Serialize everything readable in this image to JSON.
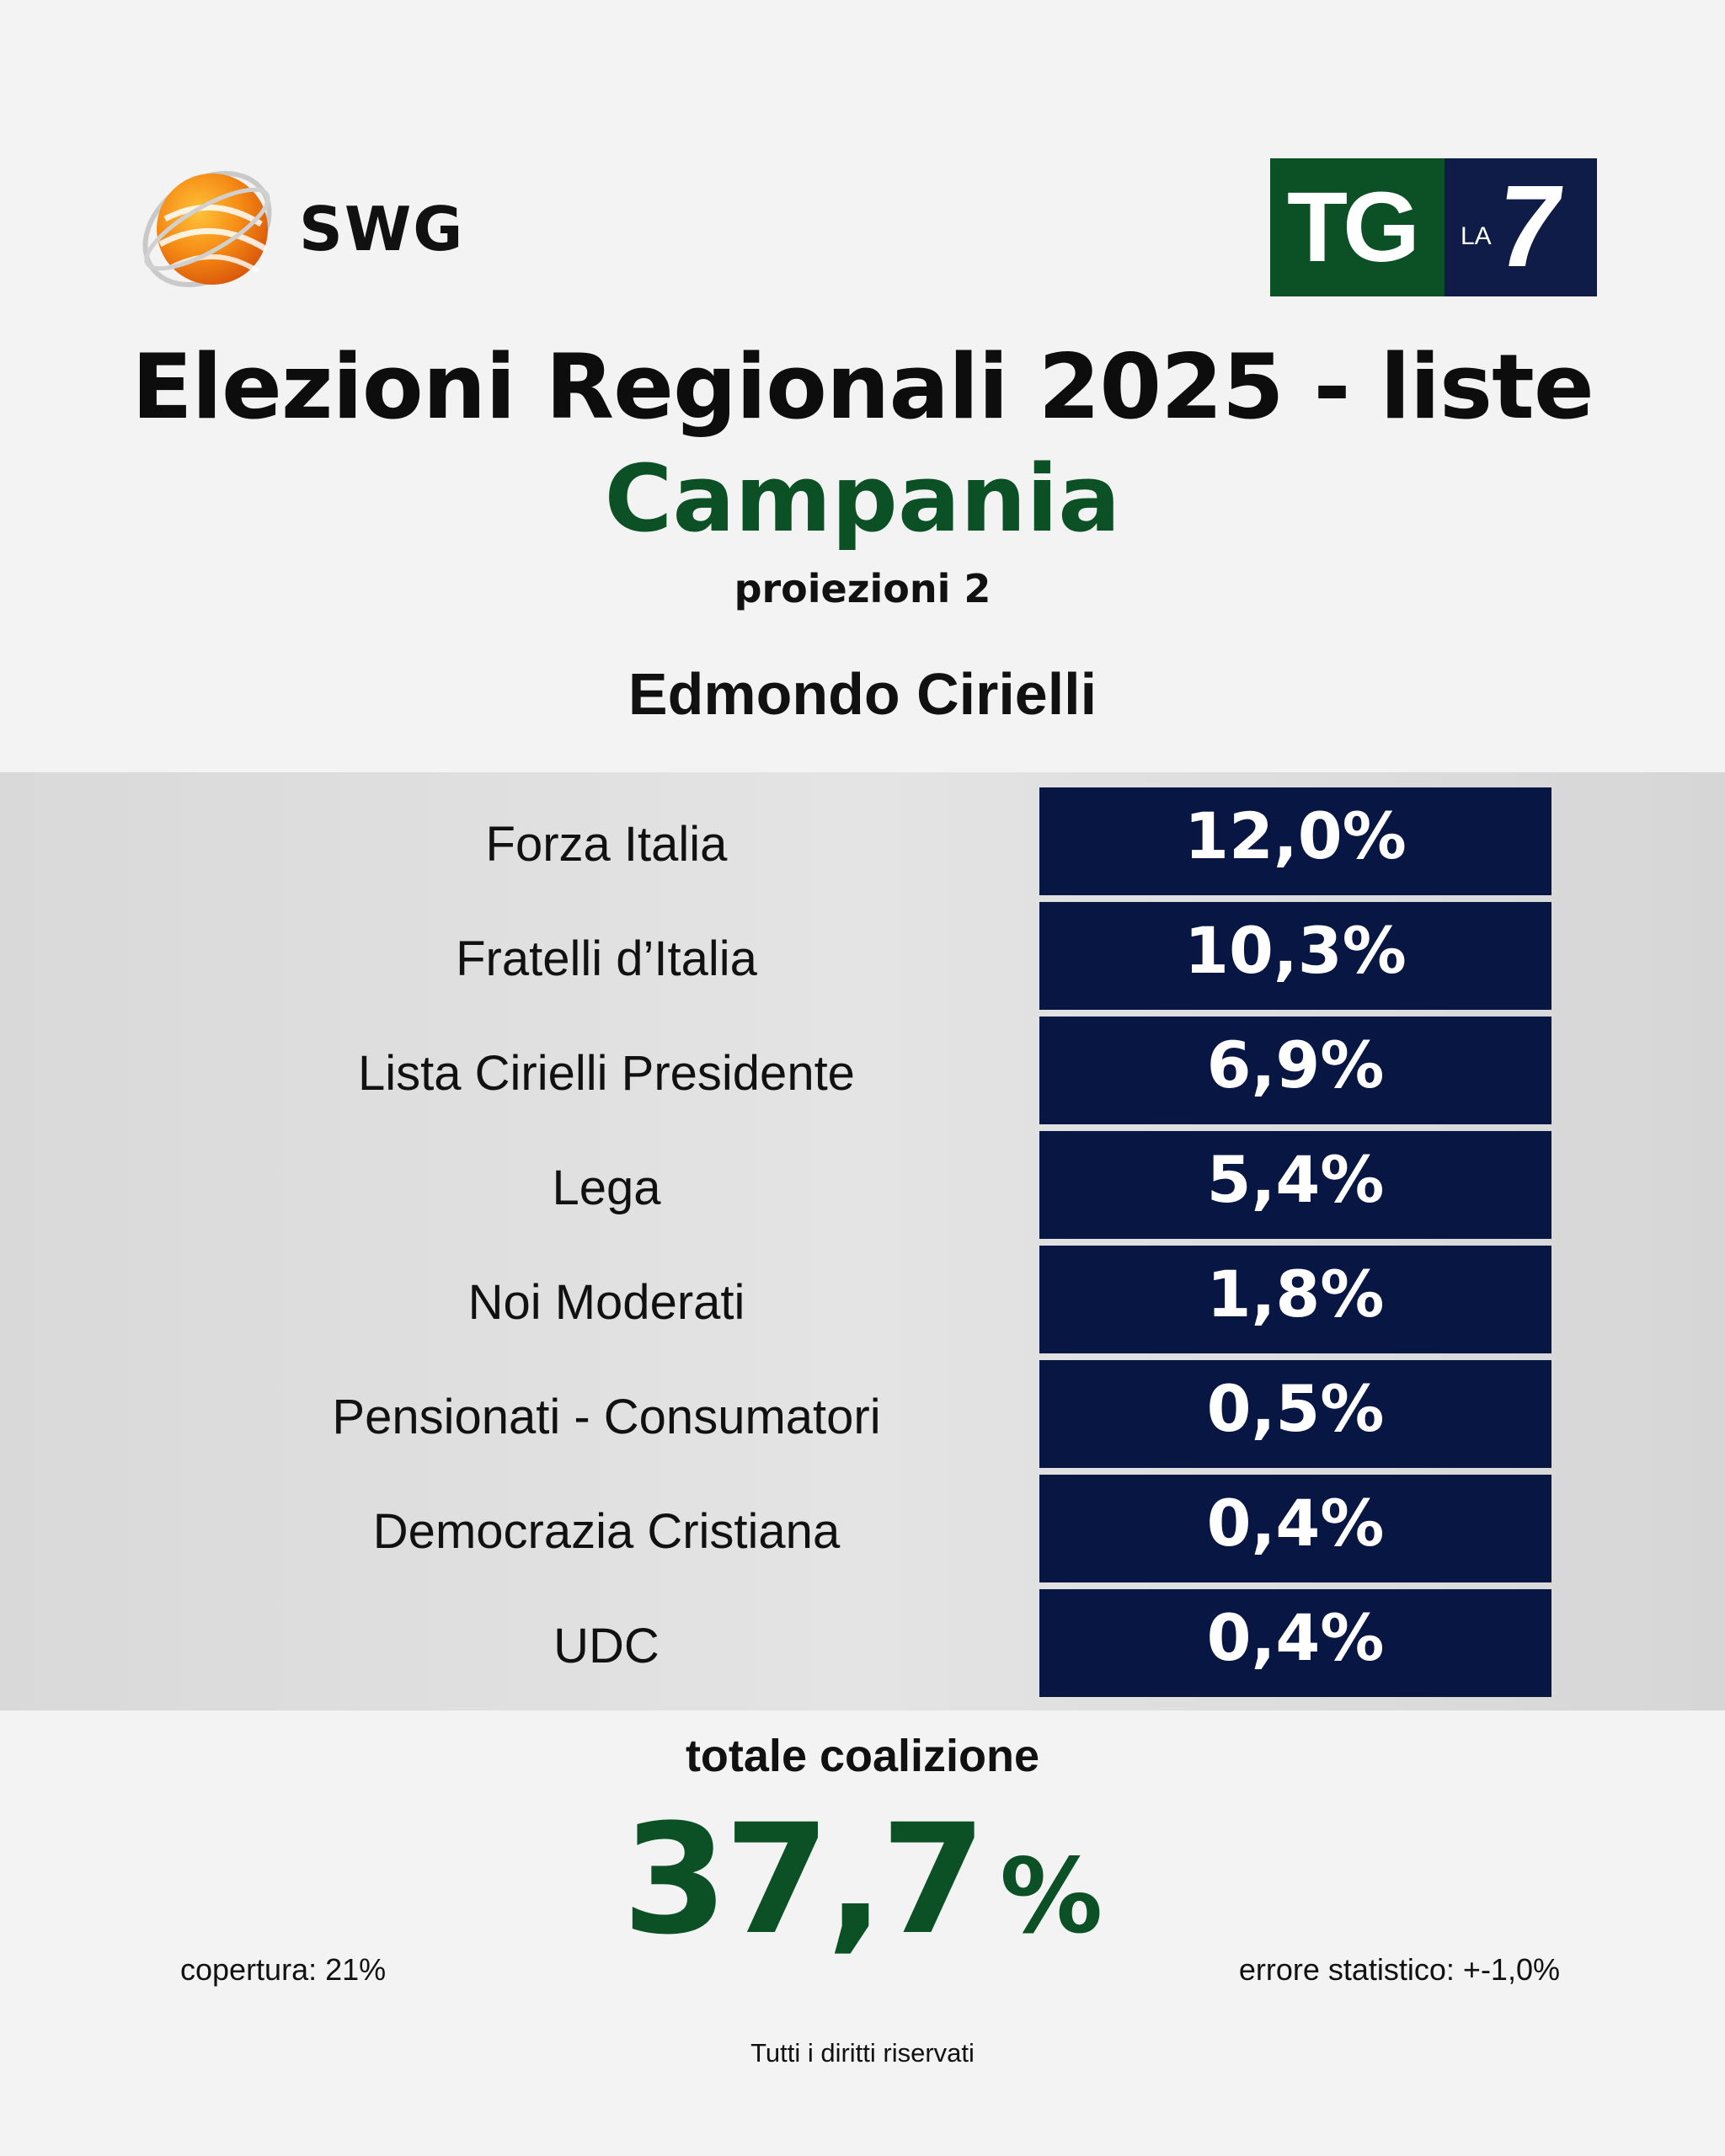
{
  "header": {
    "swg_logo_text": "SWG",
    "tg_logo": {
      "tg": "TG",
      "la": "LA",
      "seven": "7"
    }
  },
  "title": "Elezioni Regionali 2025 - liste",
  "region": "Campania",
  "projection_label": "proiezioni 2",
  "candidate": "Edmondo Cirielli",
  "chart_data": {
    "type": "table",
    "title": "Edmondo Cirielli",
    "categories": [
      "Forza Italia",
      "Fratelli d’Italia",
      "Lista Cirielli Presidente",
      "Lega",
      "Noi Moderati",
      "Pensionati - Consumatori",
      "Democrazia Cristiana",
      "UDC"
    ],
    "values": [
      12.0,
      10.3,
      6.9,
      5.4,
      1.8,
      0.5,
      0.4,
      0.4
    ],
    "value_labels": [
      "12,0%",
      "10,3%",
      "6,9%",
      "5,4%",
      "1,8%",
      "0,5%",
      "0,4%",
      "0,4%"
    ]
  },
  "total": {
    "label": "totale coalizione",
    "value": "37,7",
    "unit": "%"
  },
  "footer": {
    "coverage": "copertura: 21%",
    "error": "errore statistico: +-1,0%",
    "rights": "Tutti i diritti riservati"
  },
  "colors": {
    "background": "#f3f3f3",
    "band": "#dedede",
    "value_box": "#071642",
    "green": "#0b5125",
    "swg_orange": "#f28a1e"
  }
}
